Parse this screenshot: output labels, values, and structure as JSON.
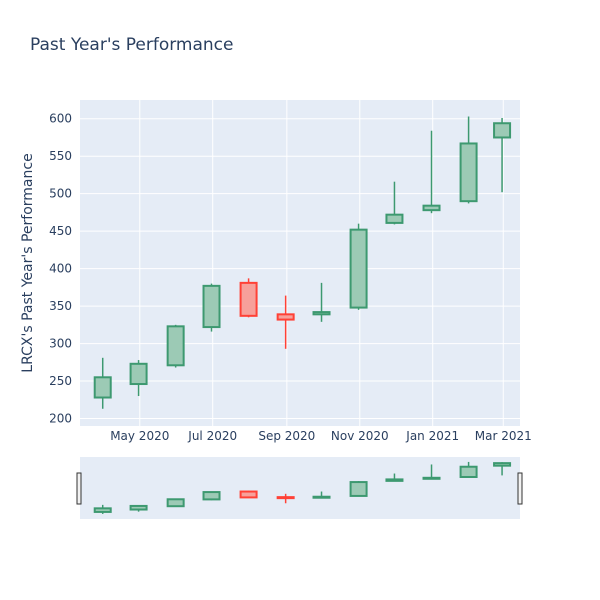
{
  "chart_data": {
    "type": "candlestick",
    "title": "Past Year's Performance",
    "xlabel": "",
    "ylabel": "LRCX's Past Year's Performance",
    "ylim": [
      190,
      625
    ],
    "yticks": [
      200,
      250,
      300,
      350,
      400,
      450,
      500,
      550,
      600
    ],
    "xticks": [
      {
        "date": "2020-05-01",
        "label": "May 2020"
      },
      {
        "date": "2020-07-01",
        "label": "Jul 2020"
      },
      {
        "date": "2020-09-01",
        "label": "Sep 2020"
      },
      {
        "date": "2020-11-01",
        "label": "Nov 2020"
      },
      {
        "date": "2021-01-01",
        "label": "Jan 2021"
      },
      {
        "date": "2021-03-01",
        "label": "Mar 2021"
      }
    ],
    "xrange": [
      "2020-03-12",
      "2021-03-15"
    ],
    "colors": {
      "increasing": "#3d9970",
      "increasing_fill": "#9ccab5",
      "decreasing": "#ff4136",
      "decreasing_fill": "#f7a09a",
      "plot_bg": "#e5ecf6",
      "grid": "#ffffff",
      "text": "#2a3f5f"
    },
    "range_slider": true,
    "grid": true,
    "series": [
      {
        "date": "2020-03-31",
        "open": 228,
        "high": 281,
        "low": 213,
        "close": 255
      },
      {
        "date": "2020-04-30",
        "open": 246,
        "high": 278,
        "low": 230,
        "close": 273
      },
      {
        "date": "2020-05-31",
        "open": 271,
        "high": 325,
        "low": 268,
        "close": 323
      },
      {
        "date": "2020-06-30",
        "open": 322,
        "high": 380,
        "low": 316,
        "close": 377
      },
      {
        "date": "2020-07-31",
        "open": 381,
        "high": 387,
        "low": 335,
        "close": 337
      },
      {
        "date": "2020-08-31",
        "open": 339,
        "high": 364,
        "low": 293,
        "close": 332
      },
      {
        "date": "2020-09-30",
        "open": 339,
        "high": 381,
        "low": 329,
        "close": 342
      },
      {
        "date": "2020-10-31",
        "open": 348,
        "high": 460,
        "low": 345,
        "close": 452
      },
      {
        "date": "2020-11-30",
        "open": 461,
        "high": 516,
        "low": 459,
        "close": 472
      },
      {
        "date": "2020-12-31",
        "open": 478,
        "high": 584,
        "low": 474,
        "close": 484
      },
      {
        "date": "2021-01-31",
        "open": 490,
        "high": 603,
        "low": 487,
        "close": 567
      },
      {
        "date": "2021-02-28",
        "open": 575,
        "high": 601,
        "low": 502,
        "close": 594
      }
    ]
  }
}
